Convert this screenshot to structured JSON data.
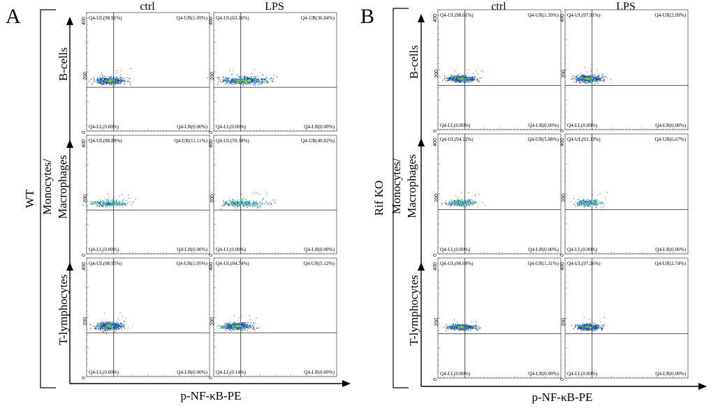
{
  "colors": {
    "axis": "#000000",
    "dense": "#1f3fb0",
    "mid": "#2a9d6a",
    "sparse": "#5ec8d8",
    "core": "#c8d400"
  },
  "chart_data": {
    "type": "scatter",
    "x_axis_label": "p-NF-κB-PE",
    "y_tick_labels": [
      "0",
      "200",
      "400"
    ],
    "columns": [
      "ctrl",
      "LPS"
    ],
    "rows": [
      "B-cells",
      "Monocytes/\nMacrophages",
      "T-lymphocytes"
    ],
    "panels": [
      {
        "label": "A",
        "group": "WT",
        "cells": [
          [
            {
              "UL": "Q4-UL(98.91%)",
              "UR": "Q4-UR(1.09%)",
              "LL": "Q4-LL(0.00%)",
              "LR": "Q4-LR(0.00%)",
              "palette": "dense",
              "width": 45,
              "height": 10,
              "spread": "low"
            },
            {
              "UL": "Q4-UL(63.16%)",
              "UR": "Q4-UR(36.84%)",
              "LL": "Q4-LL(0.00%)",
              "LR": "Q4-LR(0.00%)",
              "palette": "dense",
              "width": 75,
              "height": 10,
              "spread": "wide"
            }
          ],
          [
            {
              "UL": "Q4-UL(88.89%)",
              "UR": "Q4-UR(11.11%)",
              "LL": "Q4-LL(0.00%)",
              "LR": "Q4-LR(0.00%)",
              "palette": "sparse",
              "width": 55,
              "height": 8,
              "spread": "low"
            },
            {
              "UL": "Q4-UL(59.18%)",
              "UR": "Q4-UR(40.82%)",
              "LL": "Q4-LL(0.00%)",
              "LR": "Q4-LR(0.00%)",
              "palette": "sparse",
              "width": 70,
              "height": 9,
              "spread": "wide"
            }
          ],
          [
            {
              "UL": "Q4-UL(98.95%)",
              "UR": "Q4-UR(1.05%)",
              "LL": "Q4-LL(0.00%)",
              "LR": "Q4-LR(0.00%)",
              "palette": "dense",
              "width": 40,
              "height": 11,
              "spread": "low"
            },
            {
              "UL": "Q4-UL(94.74%)",
              "UR": "Q4-UR(5.12%)",
              "LL": "Q4-LL(0.14%)",
              "LR": "Q4-LR(0.00%)",
              "palette": "dense",
              "width": 45,
              "height": 9,
              "spread": "low"
            }
          ]
        ]
      },
      {
        "label": "B",
        "group": "Rif KO",
        "cells": [
          [
            {
              "UL": "Q4-UL(98.61%)",
              "UR": "Q4-UR(1.39%)",
              "LL": "Q4-LL(0.00%)",
              "LR": "Q4-LR(0.00%)",
              "palette": "dense",
              "width": 45,
              "height": 8,
              "spread": "low"
            },
            {
              "UL": "Q4-UL(97.91%)",
              "UR": "Q4-UR(2.09%)",
              "LL": "Q4-LL(0.00%)",
              "LR": "Q4-LR(0.00%)",
              "palette": "dense",
              "width": 40,
              "height": 10,
              "spread": "low"
            }
          ],
          [
            {
              "UL": "Q4-UL(94.12%)",
              "UR": "Q4-UR(5.88%)",
              "LL": "Q4-LL(0.00%)",
              "LR": "Q4-LR(0.00%)",
              "palette": "sparse",
              "width": 40,
              "height": 9,
              "spread": "low"
            },
            {
              "UL": "Q4-UL(93.33%)",
              "UR": "Q4-UR(6.67%)",
              "LL": "Q4-LL(0.00%)",
              "LR": "Q4-LR(0.00%)",
              "palette": "sparse",
              "width": 40,
              "height": 9,
              "spread": "low"
            }
          ],
          [
            {
              "UL": "Q4-UL(98.69%)",
              "UR": "Q4-UR(1.31%)",
              "LL": "Q4-LL(0.00%)",
              "LR": "Q4-LR(0.00%)",
              "palette": "dense",
              "width": 40,
              "height": 7,
              "spread": "low"
            },
            {
              "UL": "Q4-UL(97.26%)",
              "UR": "Q4-UR(2.74%)",
              "LL": "Q4-LL(0.00%)",
              "LR": "Q4-LR(0.00%)",
              "palette": "dense",
              "width": 35,
              "height": 8,
              "spread": "low"
            }
          ]
        ]
      }
    ]
  }
}
